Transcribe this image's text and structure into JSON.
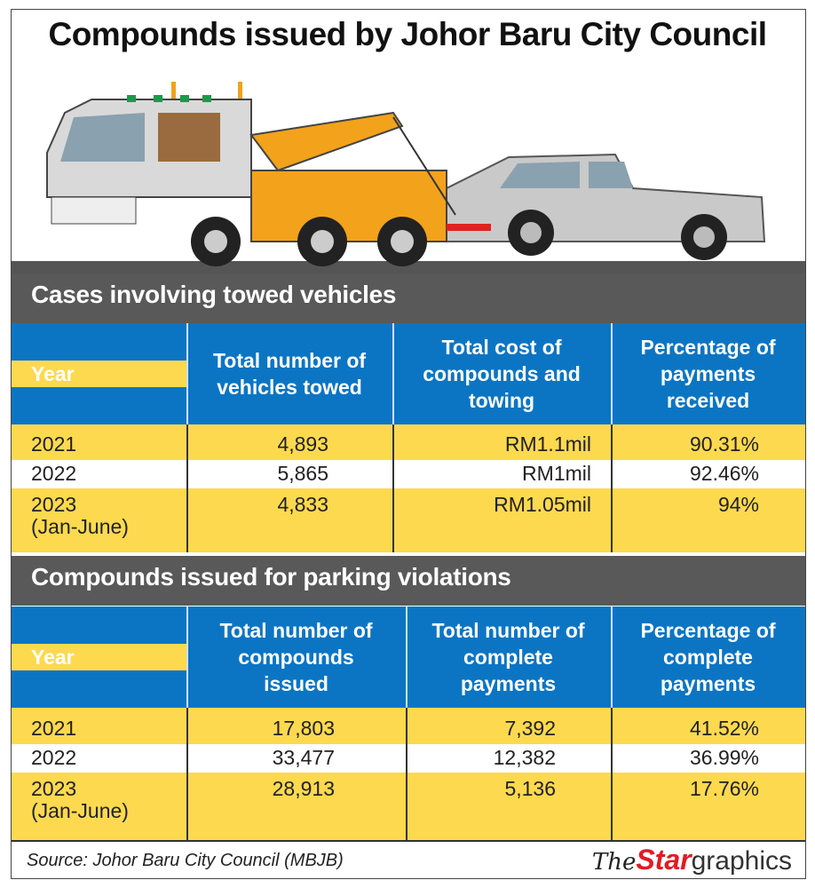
{
  "title": "Compounds issued by Johor Baru City Council",
  "colors": {
    "header_blue": "#0b75c4",
    "band_gray": "#595959",
    "row_yellow": "#fcd94f",
    "logo_red": "#e21b23"
  },
  "illustration": "tow-truck-towing-pickup",
  "towed": {
    "heading": "Cases involving towed vehicles",
    "columns": [
      "Year",
      "Total number of vehicles towed",
      "Total cost of compounds and towing",
      "Percentage of payments received"
    ],
    "rows": [
      {
        "year": "2021",
        "sub": "",
        "c1": "4,893",
        "c2": "RM1.1mil",
        "c3": "90.31%"
      },
      {
        "year": "2022",
        "sub": "",
        "c1": "5,865",
        "c2": "RM1mil",
        "c3": "92.46%"
      },
      {
        "year": "2023",
        "sub": "(Jan-June)",
        "c1": "4,833",
        "c2": "RM1.05mil",
        "c3": "94%"
      }
    ]
  },
  "parking": {
    "heading": "Compounds issued for parking violations",
    "columns": [
      "Year",
      "Total number of compounds issued",
      "Total number of complete payments",
      "Percentage of complete payments"
    ],
    "rows": [
      {
        "year": "2021",
        "sub": "",
        "c1": "17,803",
        "c2": "7,392",
        "c3": "41.52%"
      },
      {
        "year": "2022",
        "sub": "",
        "c1": "33,477",
        "c2": "12,382",
        "c3": "36.99%"
      },
      {
        "year": "2023",
        "sub": "(Jan-June)",
        "c1": "28,913",
        "c2": "5,136",
        "c3": "17.76%"
      }
    ]
  },
  "footer": {
    "source": "Source: Johor Baru City Council (MBJB)",
    "logo_the": "The",
    "logo_star": "Star",
    "logo_graphics": "graphics"
  }
}
